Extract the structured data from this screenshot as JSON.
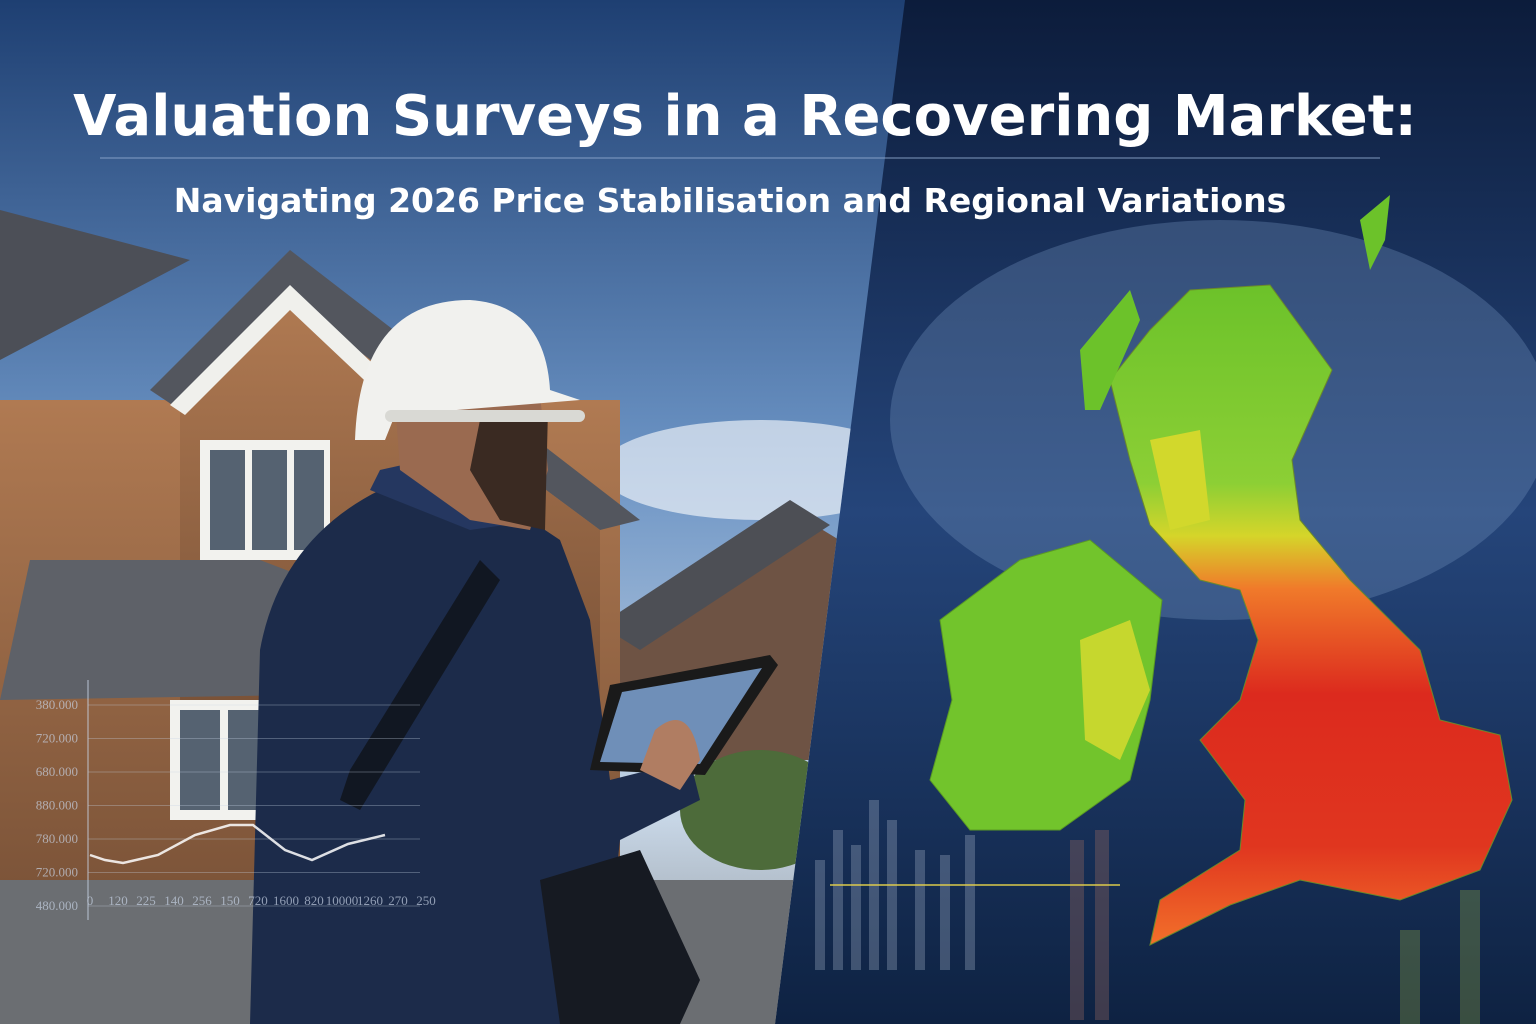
{
  "title": "Valuation Surveys in a Recovering Market:",
  "subtitle": "Navigating 2026 Price Stabilisation and Regional Variations",
  "overlay_chart": {
    "y_labels": [
      "380.000",
      "720.000",
      "680.000",
      "880.000",
      "780.000",
      "720.000",
      "480.000"
    ],
    "x_labels": [
      "0",
      "120",
      "225",
      "140",
      "256",
      "150",
      "720",
      "1600",
      "820",
      "10000",
      "1260",
      "270",
      "250"
    ]
  }
}
